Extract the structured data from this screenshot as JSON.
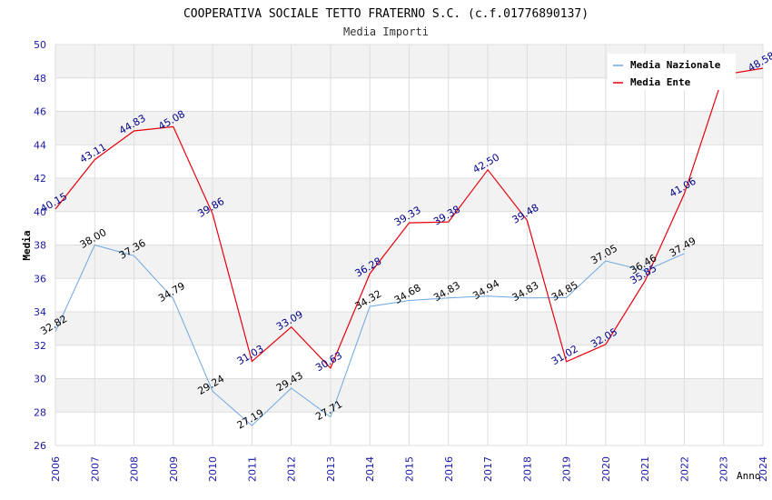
{
  "chart_data": {
    "type": "line",
    "title": "COOPERATIVA SOCIALE TETTO FRATERNO S.C. (c.f.01776890137)",
    "subtitle": "Media Importi",
    "xlabel": "Anno",
    "ylabel": "Media",
    "x": [
      "2006",
      "2007",
      "2008",
      "2009",
      "2010",
      "2011",
      "2012",
      "2013",
      "2014",
      "2015",
      "2016",
      "2017",
      "2018",
      "2019",
      "2020",
      "2021",
      "2022",
      "2023",
      "2024"
    ],
    "ylim": [
      26,
      50
    ],
    "yticks": [
      "26",
      "28",
      "30",
      "32",
      "34",
      "36",
      "38",
      "40",
      "42",
      "44",
      "46",
      "48",
      "50"
    ],
    "grid": true,
    "legend_position": "top-right",
    "series": [
      {
        "name": "Media Nazionale",
        "color": "#6ca6e0",
        "label_color": "#000000",
        "values": [
          32.82,
          38.0,
          37.36,
          34.79,
          29.24,
          27.19,
          29.43,
          27.71,
          34.32,
          34.68,
          34.83,
          34.94,
          34.83,
          34.85,
          37.05,
          36.46,
          37.49,
          null,
          null
        ],
        "labels": [
          "32.82",
          "38.00",
          "37.36",
          "34.79",
          "29.24",
          "27.19",
          "29.43",
          "27.71",
          "34.32",
          "34.68",
          "34.83",
          "34.94",
          "34.83",
          "34.85",
          "37.05",
          "36.46",
          "37.49",
          null,
          null
        ]
      },
      {
        "name": "Media Ente",
        "color": "#e8000b",
        "label_color": "#00008b",
        "values": [
          40.15,
          43.11,
          44.83,
          45.08,
          39.86,
          31.03,
          33.09,
          30.63,
          36.28,
          39.33,
          39.38,
          42.5,
          39.48,
          31.02,
          32.05,
          35.85,
          41.06,
          48.2,
          48.58
        ],
        "labels": [
          "40.15",
          "43.11",
          "44.83",
          "45.08",
          "39.86",
          "31.03",
          "33.09",
          "30.63",
          "36.28",
          "39.33",
          "39.38",
          "42.50",
          "39.48",
          "31.02",
          "32.05",
          "35.85",
          "41.06",
          "",
          "48.58"
        ]
      }
    ]
  }
}
